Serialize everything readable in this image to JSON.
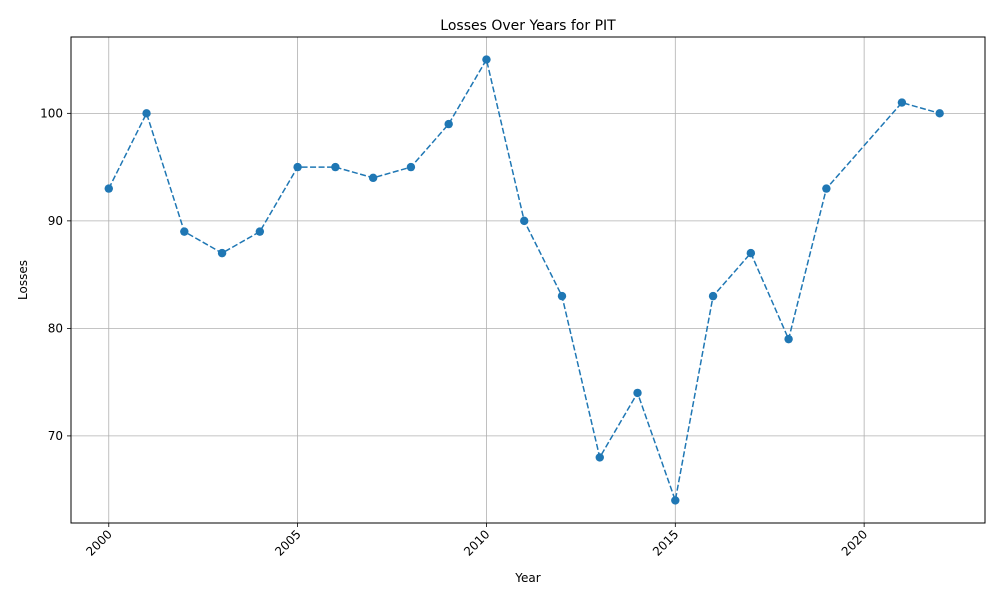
{
  "chart_data": {
    "type": "line",
    "title": "Losses Over Years for PIT",
    "xlabel": "Year",
    "ylabel": "Losses",
    "xlim": [
      1999.0,
      2023.2
    ],
    "ylim": [
      61.9,
      107.1
    ],
    "x_ticks": [
      2000,
      2005,
      2010,
      2015,
      2020
    ],
    "y_ticks": [
      70,
      80,
      90,
      100
    ],
    "grid": true,
    "line_style": "dashed",
    "marker": "circle",
    "color": "#1f77b4",
    "series": [
      {
        "x": [
          2000,
          2001,
          2002,
          2003,
          2004,
          2005,
          2006,
          2007,
          2008,
          2009,
          2010,
          2011,
          2012,
          2013,
          2014,
          2015,
          2016,
          2017,
          2018,
          2019,
          2021,
          2022
        ],
        "values": [
          93,
          100,
          89,
          87,
          89,
          95,
          95,
          94,
          95,
          99,
          105,
          90,
          83,
          68,
          74,
          64,
          83,
          87,
          79,
          93,
          101,
          100
        ]
      }
    ]
  }
}
